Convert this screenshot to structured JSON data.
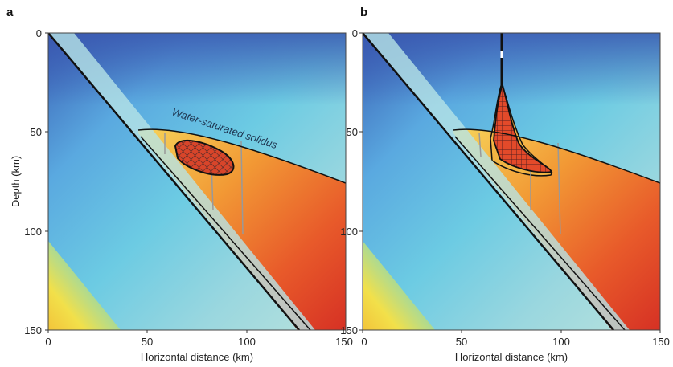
{
  "figure": {
    "panels": [
      {
        "label": "a",
        "ylabel": "Depth (km)",
        "xlabel": "Horizontal distance (km)",
        "annotation": "Water-saturated solidus",
        "xticks": [
          "0",
          "50",
          "100",
          "150"
        ],
        "yticks": [
          "0",
          "50",
          "100",
          "150"
        ]
      },
      {
        "label": "b",
        "ylabel": "",
        "xlabel": "Horizontal distance (km)",
        "annotation": "",
        "xticks": [
          "0",
          "50",
          "100",
          "150"
        ],
        "yticks": [
          "0",
          "50",
          "100",
          "150"
        ]
      }
    ],
    "colors": {
      "cold": "#3a5fb5",
      "cool": "#5fc2e0",
      "warm": "#f2c43a",
      "hot": "#e23a25",
      "slab_line": "#111111",
      "melt_hatch": "#4a2a2a"
    }
  }
}
